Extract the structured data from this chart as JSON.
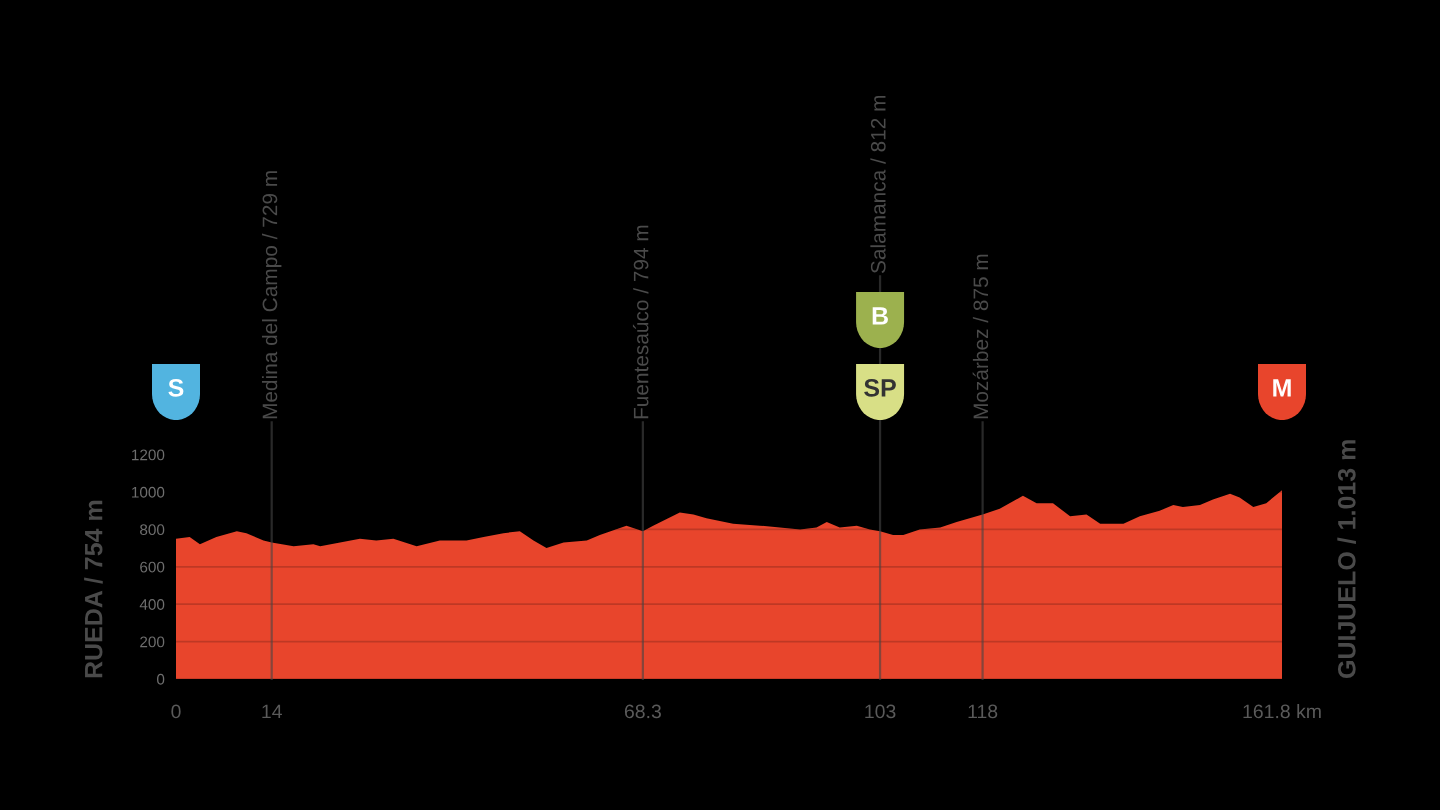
{
  "chart_data": {
    "type": "area",
    "x": [
      0,
      2.0,
      3.5,
      5.9,
      8.9,
      10.3,
      12.8,
      14,
      17.2,
      20.1,
      21.1,
      24.0,
      26.9,
      29.3,
      31.8,
      35.2,
      38.6,
      42.5,
      45.0,
      47.9,
      50.3,
      52.3,
      54.2,
      56.7,
      60.1,
      62.0,
      65.9,
      68.3,
      69.8,
      73.7,
      75.7,
      77.6,
      81.5,
      85.4,
      91.3,
      93.7,
      95.2,
      97.1,
      99.6,
      101.5,
      103,
      104.9,
      106.4,
      108.8,
      111.8,
      114.2,
      118,
      120.5,
      123.9,
      125.9,
      128.3,
      130.8,
      133.2,
      135.2,
      138.6,
      141.0,
      143.9,
      145.9,
      147.3,
      149.8,
      151.7,
      154.2,
      155.6,
      157.6,
      159.5,
      161.8
    ],
    "series": [
      {
        "color": "#e8452c",
        "values": [
          750,
          760,
          720,
          760,
          790,
          780,
          740,
          730,
          710,
          720,
          710,
          730,
          750,
          740,
          750,
          710,
          740,
          740,
          760,
          780,
          790,
          740,
          700,
          730,
          740,
          770,
          820,
          790,
          820,
          890,
          880,
          860,
          830,
          820,
          800,
          810,
          840,
          810,
          820,
          800,
          790,
          770,
          770,
          800,
          810,
          840,
          880,
          910,
          980,
          940,
          940,
          870,
          880,
          830,
          830,
          870,
          900,
          930,
          920,
          930,
          960,
          990,
          970,
          920,
          940,
          1010
        ]
      }
    ],
    "xlim": [
      0,
      161.8
    ],
    "ylim": [
      0,
      1200
    ],
    "xticks": [
      0,
      14,
      68.3,
      103,
      118,
      {
        "value": 161.8,
        "label": "161.8 km"
      }
    ],
    "yticks": [
      0,
      200,
      400,
      600,
      800,
      1000,
      1200
    ],
    "grid": "y",
    "ylabel": "RUEDA / 754 m",
    "y2label": "GUIJUELO / 1.013 m",
    "ref_lines": [
      {
        "axis": "x",
        "value": 14,
        "label": "Medina del Campo / 729 m",
        "color": "#454545"
      },
      {
        "axis": "x",
        "value": 68.3,
        "label": "Fuentesaúco / 794 m",
        "color": "#454545"
      },
      {
        "axis": "x",
        "value": 103,
        "label": "Salamanca / 812 m",
        "color": "#454545"
      },
      {
        "axis": "x",
        "value": 118,
        "label": "Mozárbez / 875 m",
        "color": "#454545"
      }
    ],
    "annotations": [
      "S",
      {
        "text": "B",
        "x": 103
      },
      {
        "text": "SP",
        "x": 103
      },
      "M"
    ]
  }
}
